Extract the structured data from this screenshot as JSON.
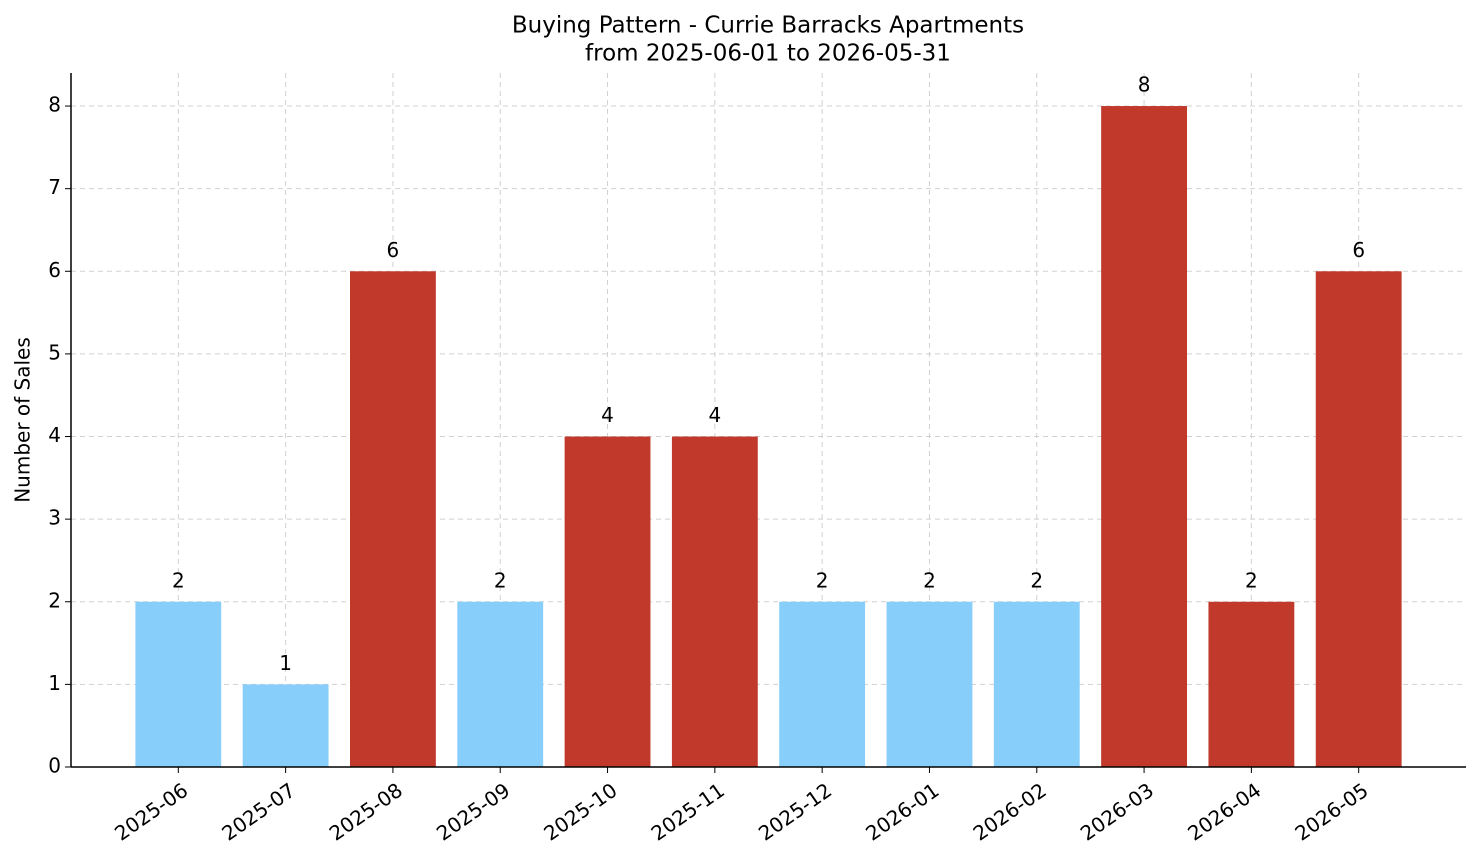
{
  "chart_data": {
    "type": "bar",
    "title": "Buying Pattern - Currie Barracks Apartments",
    "subtitle": "from 2025-06-01 to 2026-05-31",
    "y_label": "Number of Sales",
    "categories": [
      "2025-06",
      "2025-07",
      "2025-08",
      "2025-09",
      "2025-10",
      "2025-11",
      "2025-12",
      "2026-01",
      "2026-02",
      "2026-03",
      "2026-04",
      "2026-05"
    ],
    "values": [
      2,
      1,
      6,
      2,
      4,
      4,
      2,
      2,
      2,
      8,
      2,
      6
    ],
    "colors": [
      "#87cefa",
      "#87cefa",
      "#c0392b",
      "#87cefa",
      "#c0392b",
      "#c0392b",
      "#87cefa",
      "#87cefa",
      "#87cefa",
      "#c0392b",
      "#c0392b",
      "#c0392b"
    ],
    "ylim": [
      0,
      8.4
    ],
    "yticks": [
      0,
      1,
      2,
      3,
      4,
      5,
      6,
      7,
      8
    ],
    "grid": true
  }
}
